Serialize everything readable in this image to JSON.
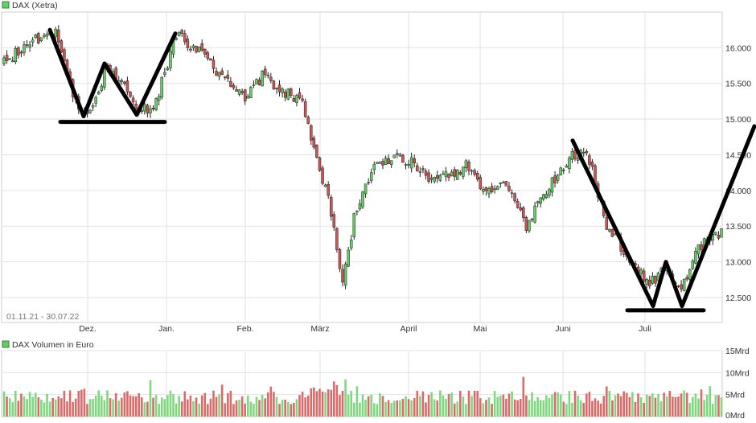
{
  "chart_data": [
    {
      "type": "candlestick",
      "legend_label": "DAX (Xetra)",
      "date_range": "01.11.21 - 30.07.22",
      "month_labels": [
        "Dez.",
        "Jan.",
        "Feb.",
        "März",
        "April",
        "Mai",
        "Juni",
        "Juli"
      ],
      "yticks": [
        "16.000",
        "15.500",
        "15.000",
        "14.500",
        "14.000",
        "13.500",
        "13.000",
        "12.500"
      ],
      "ytick_values": [
        16000,
        15500,
        15000,
        14500,
        14000,
        13500,
        13000,
        12500
      ],
      "ylim": [
        12150,
        16500
      ],
      "up_color": "#66cc66",
      "down_color": "#cc5555",
      "trend_color": "#000000",
      "waypoints": [
        [
          0,
          15800
        ],
        [
          8,
          16050
        ],
        [
          18,
          16250
        ],
        [
          24,
          15300
        ],
        [
          30,
          15050
        ],
        [
          36,
          15750
        ],
        [
          46,
          15200
        ],
        [
          52,
          15100
        ],
        [
          60,
          16200
        ],
        [
          68,
          15950
        ],
        [
          76,
          15600
        ],
        [
          84,
          15300
        ],
        [
          90,
          15600
        ],
        [
          97,
          15400
        ],
        [
          104,
          15200
        ],
        [
          110,
          14300
        ],
        [
          114,
          13700
        ],
        [
          118,
          12700
        ],
        [
          122,
          13600
        ],
        [
          128,
          14300
        ],
        [
          135,
          14450
        ],
        [
          142,
          14400
        ],
        [
          148,
          14200
        ],
        [
          155,
          14200
        ],
        [
          161,
          14350
        ],
        [
          168,
          14000
        ],
        [
          175,
          14050
        ],
        [
          182,
          13500
        ],
        [
          190,
          14050
        ],
        [
          197,
          14450
        ],
        [
          203,
          14600
        ],
        [
          210,
          13500
        ],
        [
          218,
          13050
        ],
        [
          225,
          12700
        ],
        [
          230,
          12900
        ],
        [
          236,
          12600
        ],
        [
          242,
          13200
        ],
        [
          250,
          13400
        ]
      ],
      "trend_lines": [
        [
          [
            62,
            16250
          ],
          [
            104,
            15040
          ],
          [
            130,
            15780
          ],
          [
            170,
            15060
          ],
          [
            218,
            16200
          ]
        ],
        [
          [
            75,
            14960
          ],
          [
            205,
            14960
          ]
        ],
        [
          [
            712,
            14700
          ],
          [
            812,
            12380
          ],
          [
            828,
            13000
          ],
          [
            848,
            12380
          ],
          [
            938,
            14900
          ]
        ],
        [
          [
            780,
            12320
          ],
          [
            875,
            12320
          ]
        ]
      ]
    },
    {
      "type": "bar",
      "legend_label": "DAX Volumen in Euro",
      "yticks": [
        "15Mrd",
        "10Mrd",
        "5Mrd",
        "0Mrd"
      ],
      "ytick_values": [
        15,
        10,
        5,
        0
      ],
      "ylim": [
        0,
        15
      ],
      "unit": "Mrd"
    }
  ]
}
